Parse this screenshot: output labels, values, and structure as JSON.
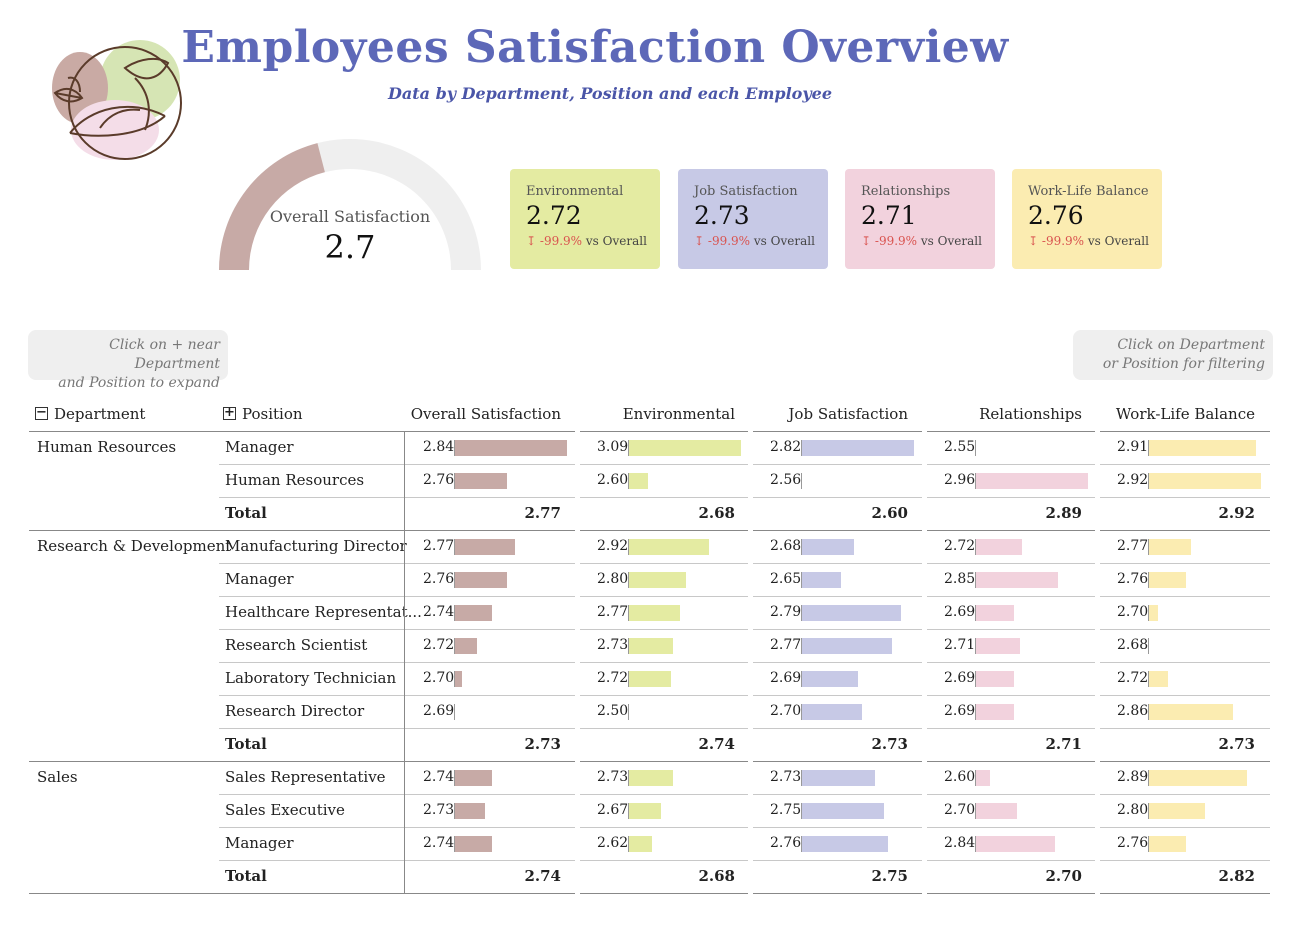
{
  "header": {
    "title": "Employees Satisfaction Overview",
    "subtitle": "Data by Department, Position and each Employee"
  },
  "gauge": {
    "label": "Overall Satisfaction",
    "value": "2.7",
    "fill_fraction": 0.42
  },
  "kpis": [
    {
      "label": "Environmental",
      "value": "2.72",
      "delta": "-99.9%",
      "suffix": "vs Overall",
      "color": "#e4eba2"
    },
    {
      "label": "Job Satisfaction",
      "value": "2.73",
      "delta": "-99.9%",
      "suffix": "vs Overall",
      "color": "#c7c9e6"
    },
    {
      "label": "Relationships",
      "value": "2.71",
      "delta": "-99.9%",
      "suffix": "vs Overall",
      "color": "#f2d2dd"
    },
    {
      "label": "Work-Life Balance",
      "value": "2.76",
      "delta": "-99.9%",
      "suffix": "vs Overall",
      "color": "#fbecb1"
    }
  ],
  "hints": {
    "left": [
      "Click on + near Department",
      "and Position to expand"
    ],
    "right": [
      "Click on Department",
      "or Position for filtering"
    ]
  },
  "table": {
    "headers": [
      "Department",
      "Position",
      "Overall Satisfaction",
      "Environmental",
      "Job Satisfaction",
      "Relationships",
      "Work-Life Balance"
    ],
    "colors": [
      "#c7aaa6",
      "#e4eba2",
      "#c7c9e6",
      "#f2d2dd",
      "#fbecb1"
    ],
    "groups": [
      {
        "department": "Human Resources",
        "rows": [
          {
            "position": "Manager",
            "values": [
              "2.84",
              "3.09",
              "2.82",
              "2.55",
              "2.91"
            ]
          },
          {
            "position": "Human Resources",
            "values": [
              "2.76",
              "2.60",
              "2.56",
              "2.96",
              "2.92"
            ]
          }
        ],
        "total_label": "Total",
        "totals": [
          "2.77",
          "2.68",
          "2.60",
          "2.89",
          "2.92"
        ]
      },
      {
        "department": "Research & Development",
        "rows": [
          {
            "position": "Manufacturing Director",
            "values": [
              "2.77",
              "2.92",
              "2.68",
              "2.72",
              "2.77"
            ]
          },
          {
            "position": "Manager",
            "values": [
              "2.76",
              "2.80",
              "2.65",
              "2.85",
              "2.76"
            ]
          },
          {
            "position": "Healthcare Representat...",
            "values": [
              "2.74",
              "2.77",
              "2.79",
              "2.69",
              "2.70"
            ]
          },
          {
            "position": "Research Scientist",
            "values": [
              "2.72",
              "2.73",
              "2.77",
              "2.71",
              "2.68"
            ]
          },
          {
            "position": "Laboratory Technician",
            "values": [
              "2.70",
              "2.72",
              "2.69",
              "2.69",
              "2.72"
            ]
          },
          {
            "position": "Research Director",
            "values": [
              "2.69",
              "2.50",
              "2.70",
              "2.69",
              "2.86"
            ]
          }
        ],
        "total_label": "Total",
        "totals": [
          "2.73",
          "2.74",
          "2.73",
          "2.71",
          "2.73"
        ]
      },
      {
        "department": "Sales",
        "rows": [
          {
            "position": "Sales Representative",
            "values": [
              "2.74",
              "2.73",
              "2.73",
              "2.60",
              "2.89"
            ]
          },
          {
            "position": "Sales Executive",
            "values": [
              "2.73",
              "2.67",
              "2.75",
              "2.70",
              "2.80"
            ]
          },
          {
            "position": "Manager",
            "values": [
              "2.74",
              "2.62",
              "2.76",
              "2.84",
              "2.76"
            ]
          }
        ],
        "total_label": "Total",
        "totals": [
          "2.74",
          "2.68",
          "2.75",
          "2.70",
          "2.82"
        ]
      }
    ]
  }
}
